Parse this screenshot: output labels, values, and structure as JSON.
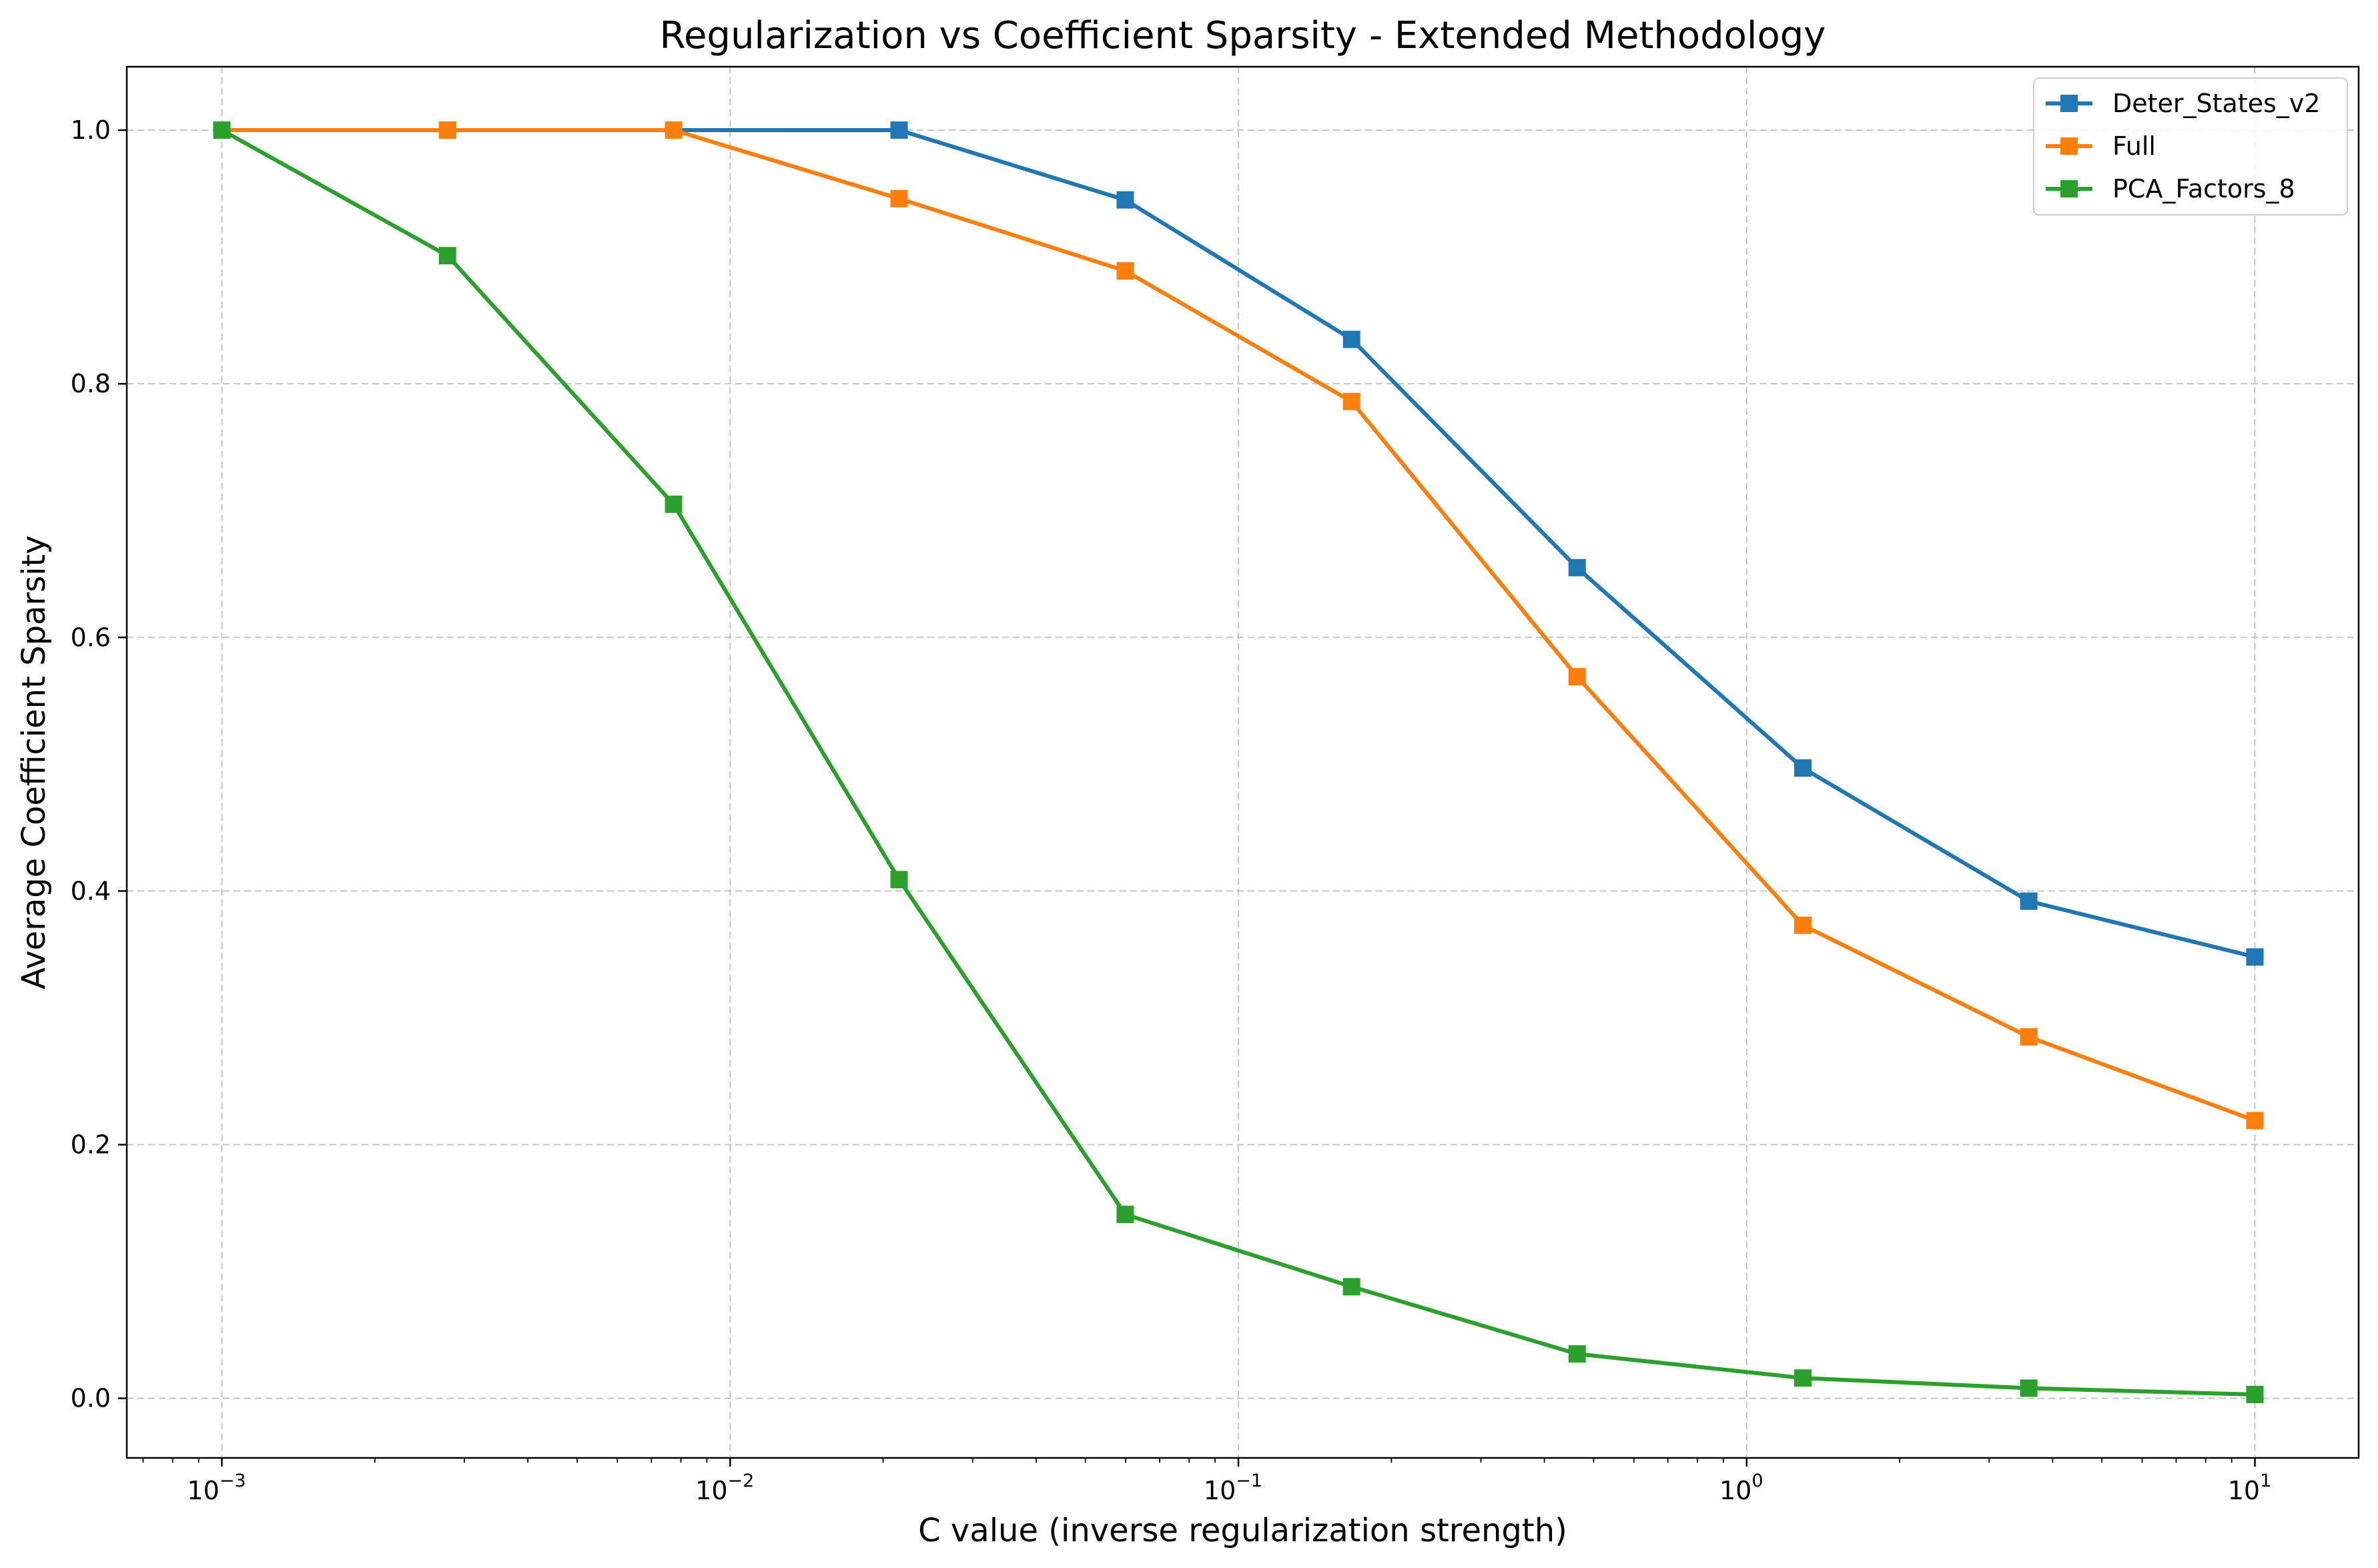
{
  "chart_data": {
    "type": "line",
    "title": "Regularization vs Coefficient Sparsity - Extended Methodology",
    "xlabel": "C value (inverse regularization strength)",
    "ylabel": "Average Coefficient Sparsity",
    "xscale": "log",
    "xlim": [
      0.00065,
      16
    ],
    "ylim": [
      -0.047,
      1.05
    ],
    "x_ticks": [
      {
        "value": 0.001,
        "base": "10",
        "exp": "−3"
      },
      {
        "value": 0.01,
        "base": "10",
        "exp": "−2"
      },
      {
        "value": 0.1,
        "base": "10",
        "exp": "−1"
      },
      {
        "value": 1,
        "base": "10",
        "exp": "0"
      },
      {
        "value": 10,
        "base": "10",
        "exp": "1"
      }
    ],
    "y_ticks": [
      {
        "value": 0.0,
        "label": "0.0"
      },
      {
        "value": 0.2,
        "label": "0.2"
      },
      {
        "value": 0.4,
        "label": "0.4"
      },
      {
        "value": 0.6,
        "label": "0.6"
      },
      {
        "value": 0.8,
        "label": "0.8"
      },
      {
        "value": 1.0,
        "label": "1.0"
      }
    ],
    "grid": true,
    "legend_position": "top-right",
    "x": [
      0.001,
      0.00278,
      0.00774,
      0.0215,
      0.0599,
      0.167,
      0.464,
      1.29,
      3.59,
      10
    ],
    "series": [
      {
        "name": "Deter_States_v2",
        "color": "#1f77b4",
        "marker": "square",
        "values": [
          1.0,
          1.0,
          1.0,
          1.0,
          0.945,
          0.835,
          0.655,
          0.497,
          0.392,
          0.348
        ]
      },
      {
        "name": "Full",
        "color": "#ff7f0e",
        "marker": "square",
        "values": [
          1.0,
          1.0,
          1.0,
          0.946,
          0.889,
          0.786,
          0.569,
          0.373,
          0.285,
          0.219
        ]
      },
      {
        "name": "PCA_Factors_8",
        "color": "#2ca02c",
        "marker": "square",
        "values": [
          1.0,
          0.901,
          0.705,
          0.409,
          0.145,
          0.088,
          0.035,
          0.016,
          0.008,
          0.003
        ]
      }
    ]
  }
}
